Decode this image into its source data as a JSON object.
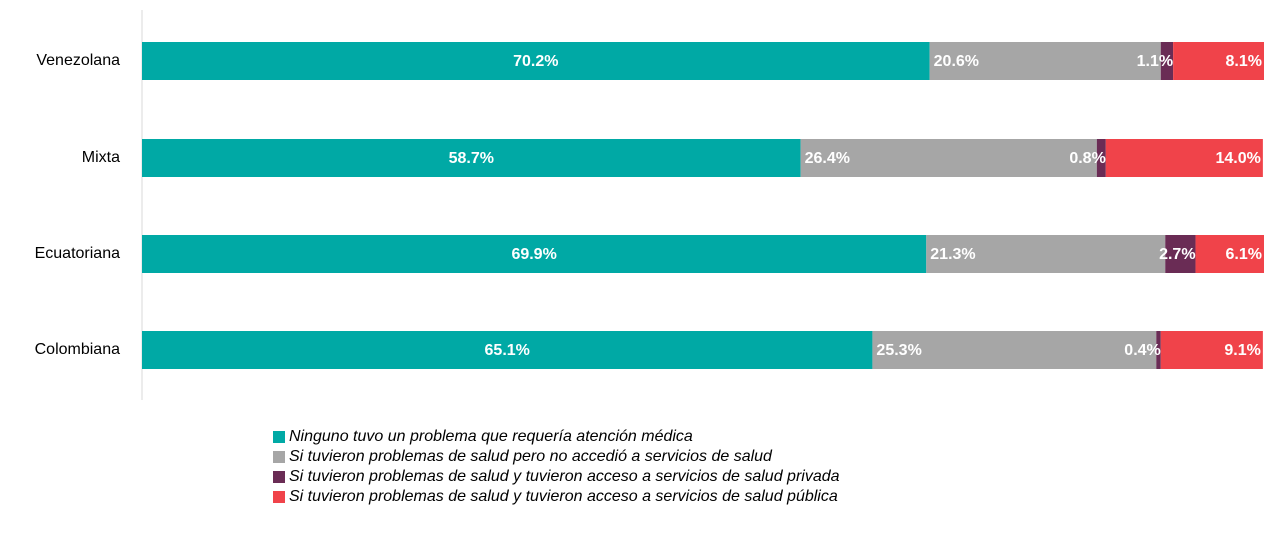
{
  "chart_data": {
    "type": "stacked-bar-horizontal",
    "categories": [
      "Venezolana",
      "Mixta",
      "Ecuatoriana",
      "Colombiana"
    ],
    "xlim": [
      0,
      100
    ],
    "series": [
      {
        "name": "Ninguno tuvo un problema que requería atención médica",
        "color": "#00a9a5",
        "values": [
          70.2,
          58.7,
          69.9,
          65.1
        ],
        "value_labels": [
          "70.2%",
          "58.7%",
          "69.9%",
          "65.1%"
        ]
      },
      {
        "name": "Si tuvieron problemas de salud pero no accedió a servicios de salud",
        "color": "#a6a6a6",
        "values": [
          20.6,
          26.4,
          21.3,
          25.3
        ],
        "value_labels": [
          "20.6%",
          "26.4%",
          "21.3%",
          "25.3%"
        ]
      },
      {
        "name": "Si tuvieron problemas de salud y tuvieron acceso a servicios de salud privada",
        "color": "#6a2c55",
        "values": [
          1.1,
          0.8,
          2.7,
          0.4
        ],
        "value_labels": [
          "1.1%",
          "0.8%",
          "2.7%",
          "0.4%"
        ]
      },
      {
        "name": "Si tuvieron problemas de salud y tuvieron acceso a servicios de salud pública",
        "color": "#f0434a",
        "values": [
          8.1,
          14.0,
          6.1,
          9.1
        ],
        "value_labels": [
          "8.1%",
          "14.0%",
          "6.1%",
          "9.1%"
        ]
      }
    ],
    "legend": "bottom"
  }
}
